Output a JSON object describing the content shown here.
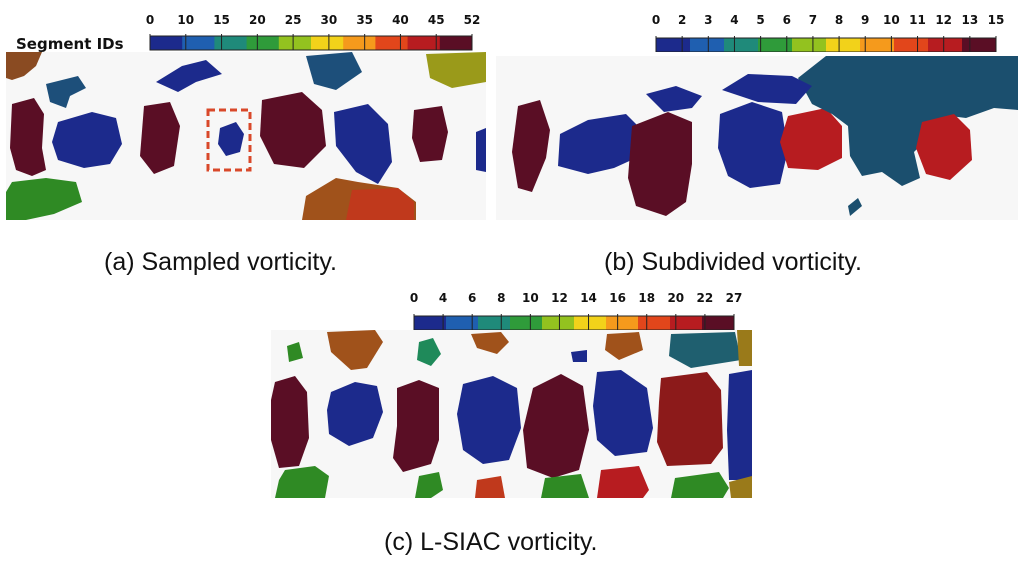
{
  "figure": {
    "panels": [
      {
        "id": "a",
        "caption": "(a) Sampled vorticity.",
        "colorbar": {
          "title": "Segment IDs",
          "ticks": [
            "0",
            "10",
            "15",
            "20",
            "25",
            "30",
            "35",
            "40",
            "45",
            "52"
          ]
        }
      },
      {
        "id": "b",
        "caption": "(b) Subdivided vorticity.",
        "colorbar": {
          "title": "",
          "ticks": [
            "0",
            "2",
            "3",
            "4",
            "5",
            "6",
            "7",
            "8",
            "9",
            "10",
            "11",
            "12",
            "13",
            "15"
          ]
        }
      },
      {
        "id": "c",
        "caption": "(c) L-SIAC vorticity.",
        "colorbar": {
          "title": "",
          "ticks": [
            "0",
            "4",
            "6",
            "8",
            "10",
            "12",
            "14",
            "16",
            "18",
            "20",
            "22",
            "27"
          ]
        }
      }
    ],
    "colormap": [
      "#1c2a8c",
      "#1f5fb0",
      "#1f8a7a",
      "#2f9b3a",
      "#93c21f",
      "#f2d21a",
      "#f59a1c",
      "#e2461b",
      "#b71c20",
      "#5a0e25"
    ],
    "highlight_box_color": "#d9482a"
  }
}
